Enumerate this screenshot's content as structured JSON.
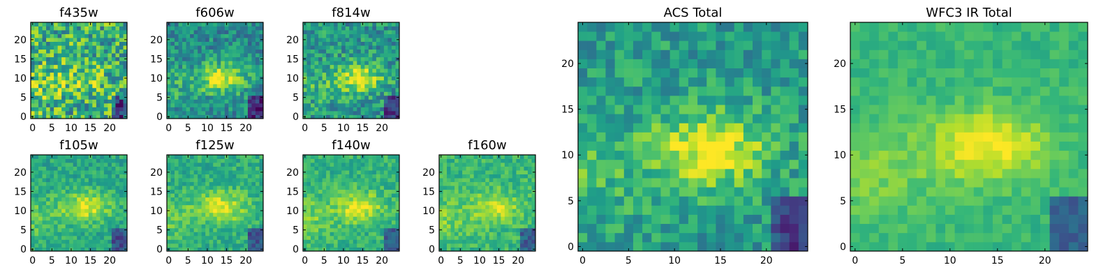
{
  "chart_data": [
    {
      "type": "heatmap",
      "title": "f435w",
      "colormap": "viridis",
      "grid_size": [
        25,
        25
      ],
      "xlim": [
        0,
        25
      ],
      "ylim": [
        0,
        25
      ],
      "xticks": [
        "0",
        "5",
        "10",
        "15",
        "20"
      ],
      "yticks": [
        "0",
        "5",
        "10",
        "15",
        "20"
      ],
      "hot_spot": {
        "x": 13,
        "y": 10,
        "level": 0.8
      },
      "noise": 0.3,
      "base_level": 0.62
    },
    {
      "type": "heatmap",
      "title": "f606w",
      "colormap": "viridis",
      "grid_size": [
        25,
        25
      ],
      "xlim": [
        0,
        25
      ],
      "ylim": [
        0,
        25
      ],
      "xticks": [
        "0",
        "5",
        "10",
        "15",
        "20"
      ],
      "yticks": [
        "0",
        "5",
        "10",
        "15",
        "20"
      ],
      "hot_spot": {
        "x": 14,
        "y": 10,
        "level": 0.95
      },
      "noise": 0.18,
      "base_level": 0.48
    },
    {
      "type": "heatmap",
      "title": "f814w",
      "colormap": "viridis",
      "grid_size": [
        25,
        25
      ],
      "xlim": [
        0,
        25
      ],
      "ylim": [
        0,
        25
      ],
      "xticks": [
        "0",
        "5",
        "10",
        "15",
        "20"
      ],
      "yticks": [
        "0",
        "5",
        "10",
        "15",
        "20"
      ],
      "hot_spot": {
        "x": 14,
        "y": 10,
        "level": 0.95
      },
      "noise": 0.2,
      "base_level": 0.52
    },
    {
      "type": "heatmap",
      "title": "f105w",
      "colormap": "viridis",
      "grid_size": [
        25,
        25
      ],
      "xlim": [
        0,
        25
      ],
      "ylim": [
        0,
        25
      ],
      "xticks": [
        "0",
        "5",
        "10",
        "15",
        "20"
      ],
      "yticks": [
        "0",
        "5",
        "10",
        "15",
        "20"
      ],
      "hot_spot": {
        "x": 14,
        "y": 11,
        "level": 0.95
      },
      "noise": 0.12,
      "base_level": 0.6
    },
    {
      "type": "heatmap",
      "title": "f125w",
      "colormap": "viridis",
      "grid_size": [
        25,
        25
      ],
      "xlim": [
        0,
        25
      ],
      "ylim": [
        0,
        25
      ],
      "xticks": [
        "0",
        "5",
        "10",
        "15",
        "20"
      ],
      "yticks": [
        "0",
        "5",
        "10",
        "15",
        "20"
      ],
      "hot_spot": {
        "x": 14,
        "y": 11,
        "level": 0.95
      },
      "noise": 0.12,
      "base_level": 0.62
    },
    {
      "type": "heatmap",
      "title": "f140w",
      "colormap": "viridis",
      "grid_size": [
        25,
        25
      ],
      "xlim": [
        0,
        25
      ],
      "ylim": [
        0,
        25
      ],
      "xticks": [
        "0",
        "5",
        "10",
        "15",
        "20"
      ],
      "yticks": [
        "0",
        "5",
        "10",
        "15",
        "20"
      ],
      "hot_spot": {
        "x": 14,
        "y": 11,
        "level": 0.95
      },
      "noise": 0.12,
      "base_level": 0.64
    },
    {
      "type": "heatmap",
      "title": "f160w",
      "colormap": "viridis",
      "grid_size": [
        25,
        25
      ],
      "xlim": [
        0,
        25
      ],
      "ylim": [
        0,
        25
      ],
      "xticks": [
        "0",
        "5",
        "10",
        "15",
        "20"
      ],
      "yticks": [
        "0",
        "5",
        "10",
        "15",
        "20"
      ],
      "hot_spot": {
        "x": 14,
        "y": 11,
        "level": 0.92
      },
      "noise": 0.12,
      "base_level": 0.66
    },
    {
      "type": "heatmap",
      "title": "ACS Total",
      "colormap": "viridis",
      "grid_size": [
        25,
        25
      ],
      "xlim": [
        0,
        25
      ],
      "ylim": [
        0,
        25
      ],
      "xticks": [
        "0",
        "5",
        "10",
        "15",
        "20"
      ],
      "yticks": [
        "0",
        "5",
        "10",
        "15",
        "20"
      ],
      "hot_spot": {
        "x": 14,
        "y": 10.5,
        "level": 1.0
      },
      "noise": 0.16,
      "base_level": 0.55
    },
    {
      "type": "heatmap",
      "title": "WFC3 IR Total",
      "colormap": "viridis",
      "grid_size": [
        25,
        25
      ],
      "xlim": [
        0,
        25
      ],
      "ylim": [
        0,
        25
      ],
      "xticks": [
        "0",
        "5",
        "10",
        "15",
        "20"
      ],
      "yticks": [
        "0",
        "5",
        "10",
        "15",
        "20"
      ],
      "hot_spot": {
        "x": 14,
        "y": 11,
        "level": 1.0
      },
      "noise": 0.07,
      "base_level": 0.66
    }
  ]
}
